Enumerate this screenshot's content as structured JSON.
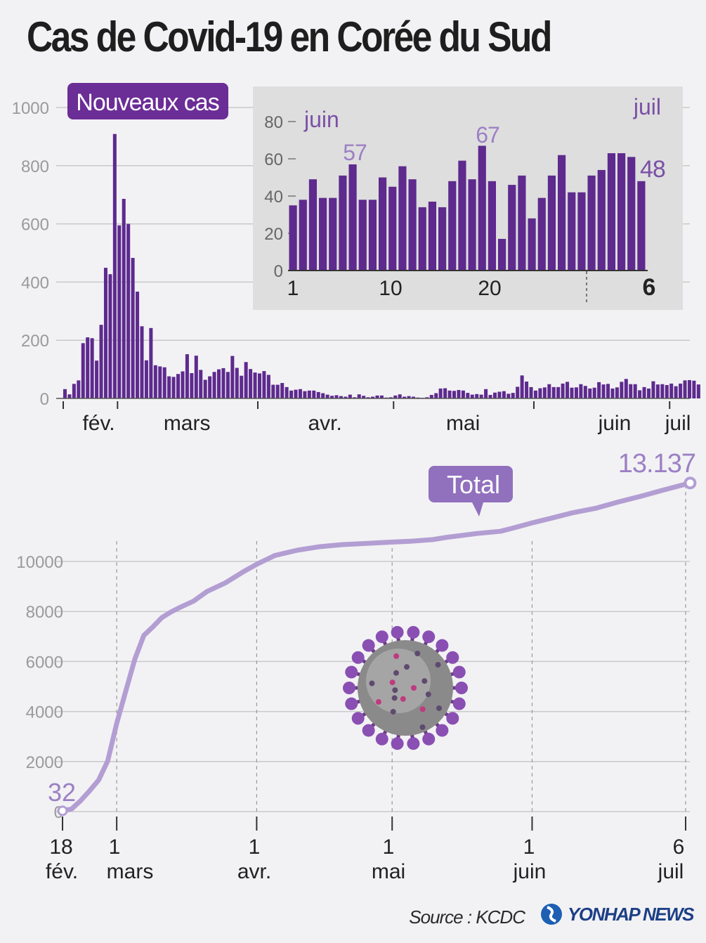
{
  "title": "Cas de Covid-19 en Corée du Sud",
  "colors": {
    "bar": "#5e2a8e",
    "bar_light": "#6b3a99",
    "total_line": "#b39ed3",
    "label_purple": "#7a50a6",
    "label_light": "#9c80c4",
    "grid": "#c9c9c9",
    "inset_bg": "#dedede",
    "background": "#f2f2f4"
  },
  "chart_data": [
    {
      "type": "bar",
      "name": "daily",
      "title": "Nouveaux cas",
      "yticks": [
        "0",
        "200",
        "400",
        "600",
        "800",
        "1000"
      ],
      "ylim": [
        0,
        1000
      ],
      "xlabels": [
        "févr.",
        "mars",
        "avr.",
        "mai",
        "juin",
        "juil"
      ],
      "xlabels_display": [
        "fév.",
        "mars",
        "avr.",
        "mai",
        "juin",
        "juil"
      ],
      "x_start": "2020-02-18",
      "x_end": "2020-07-06",
      "values": [
        32,
        14,
        50,
        62,
        190,
        210,
        207,
        130,
        253,
        449,
        427,
        909,
        595,
        686,
        600,
        483,
        367,
        248,
        131,
        242,
        114,
        110,
        107,
        76,
        74,
        84,
        93,
        152,
        87,
        147,
        98,
        64,
        76,
        91,
        100,
        104,
        91,
        146,
        105,
        78,
        125,
        101,
        89,
        86,
        94,
        81,
        47,
        47,
        53,
        39,
        27,
        30,
        32,
        25,
        27,
        27,
        22,
        18,
        13,
        9,
        11,
        8,
        6,
        13,
        4,
        14,
        9,
        4,
        6,
        10,
        10,
        3,
        4,
        10,
        14,
        6,
        8,
        6,
        3,
        2,
        4,
        12,
        18,
        34,
        35,
        27,
        26,
        29,
        27,
        19,
        13,
        15,
        13,
        32,
        12,
        20,
        23,
        25,
        16,
        19,
        40,
        79,
        58,
        39,
        27,
        35,
        38,
        49,
        39,
        39,
        51,
        57,
        37,
        38,
        49,
        43,
        34,
        37,
        56,
        48,
        50,
        34,
        38,
        57,
        67,
        49,
        49,
        28,
        39,
        34,
        59,
        48,
        49,
        46,
        51,
        42,
        51,
        62,
        63,
        61,
        48
      ]
    },
    {
      "type": "bar",
      "name": "inset",
      "title": "",
      "xlabels": [
        "1",
        "10",
        "20",
        "6"
      ],
      "month_labels": [
        "juin",
        "juil"
      ],
      "yticks": [
        "0",
        "20",
        "40",
        "60",
        "80"
      ],
      "ylim": [
        0,
        80
      ],
      "annotations": [
        "57",
        "67",
        "48"
      ],
      "values": [
        35,
        38,
        49,
        39,
        39,
        51,
        57,
        38,
        38,
        50,
        45,
        56,
        49,
        34,
        37,
        34,
        48,
        59,
        49,
        67,
        48,
        17,
        46,
        51,
        28,
        39,
        51,
        62,
        42,
        42,
        51,
        54,
        63,
        63,
        61,
        48
      ]
    },
    {
      "type": "line",
      "name": "cumulative",
      "title": "Total",
      "yticks": [
        "0",
        "2000",
        "4000",
        "6000",
        "8000",
        "10000"
      ],
      "ylim": [
        0,
        13500
      ],
      "start_label": "32",
      "end_label": "13.137",
      "xlabels": [
        {
          "day": "18",
          "month": "fév."
        },
        {
          "day": "1",
          "month": "mars"
        },
        {
          "day": "1",
          "month": "avr."
        },
        {
          "day": "1",
          "month": "mai"
        },
        {
          "day": "1",
          "month": "juin"
        },
        {
          "day": "6",
          "month": "juil"
        }
      ],
      "points": [
        [
          "2020-02-18",
          32
        ],
        [
          "2020-02-20",
          104
        ],
        [
          "2020-02-22",
          433
        ],
        [
          "2020-02-24",
          833
        ],
        [
          "2020-02-26",
          1261
        ],
        [
          "2020-02-28",
          2022
        ],
        [
          "2020-03-01",
          3526
        ],
        [
          "2020-03-03",
          4812
        ],
        [
          "2020-03-05",
          6088
        ],
        [
          "2020-03-07",
          7041
        ],
        [
          "2020-03-09",
          7382
        ],
        [
          "2020-03-11",
          7755
        ],
        [
          "2020-03-13",
          7979
        ],
        [
          "2020-03-15",
          8162
        ],
        [
          "2020-03-18",
          8413
        ],
        [
          "2020-03-21",
          8799
        ],
        [
          "2020-03-25",
          9137
        ],
        [
          "2020-03-29",
          9583
        ],
        [
          "2020-04-01",
          9887
        ],
        [
          "2020-04-05",
          10237
        ],
        [
          "2020-04-10",
          10450
        ],
        [
          "2020-04-15",
          10591
        ],
        [
          "2020-04-20",
          10674
        ],
        [
          "2020-04-25",
          10718
        ],
        [
          "2020-04-30",
          10765
        ],
        [
          "2020-05-05",
          10806
        ],
        [
          "2020-05-10",
          10874
        ],
        [
          "2020-05-13",
          10962
        ],
        [
          "2020-05-20",
          11122
        ],
        [
          "2020-05-25",
          11206
        ],
        [
          "2020-05-28",
          11344
        ],
        [
          "2020-06-01",
          11541
        ],
        [
          "2020-06-05",
          11719
        ],
        [
          "2020-06-10",
          11947
        ],
        [
          "2020-06-15",
          12121
        ],
        [
          "2020-06-20",
          12373
        ],
        [
          "2020-06-25",
          12602
        ],
        [
          "2020-06-30",
          12850
        ],
        [
          "2020-07-06",
          13137
        ]
      ]
    }
  ],
  "source": "Source : KCDC",
  "logo": "YONHAP NEWS"
}
